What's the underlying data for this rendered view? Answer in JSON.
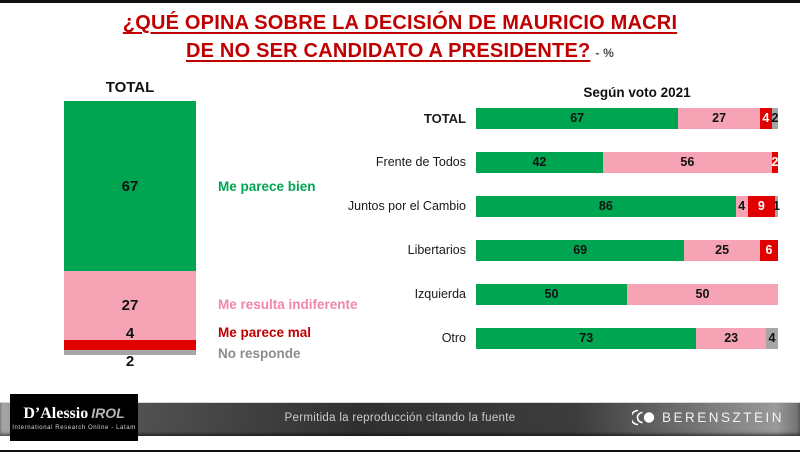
{
  "title": {
    "line1": "¿QUÉ OPINA SOBRE LA DECISIÓN DE MAURICIO MACRI",
    "line2": "DE NO SER CANDIDATO A PRESIDENTE?",
    "suffix": "- %"
  },
  "colors": {
    "green": "#00A551",
    "pink": "#F5A3B5",
    "red": "#E00000",
    "gray": "#A6A6A6",
    "title_red": "#C00000"
  },
  "chart_data": [
    {
      "type": "bar",
      "orientation": "vertical",
      "stacked": true,
      "title": "TOTAL",
      "categories": [
        "Me parece bien",
        "Me resulta indiferente",
        "Me parece mal",
        "No responde"
      ],
      "values": [
        67,
        27,
        4,
        2
      ],
      "color_keys": [
        "green",
        "pink",
        "red",
        "gray"
      ],
      "ylim": [
        0,
        100
      ]
    },
    {
      "type": "bar",
      "orientation": "horizontal",
      "stacked": true,
      "title": "Según voto 2021",
      "categories": [
        "TOTAL",
        "Frente de Todos",
        "Juntos por el Cambio",
        "Libertarios",
        "Izquierda",
        "Otro"
      ],
      "series": [
        {
          "name": "Me parece bien",
          "color_key": "green",
          "values": [
            67,
            42,
            86,
            69,
            50,
            73
          ]
        },
        {
          "name": "Me resulta indiferente",
          "color_key": "pink",
          "values": [
            27,
            56,
            4,
            25,
            50,
            23
          ]
        },
        {
          "name": "Me parece mal",
          "color_key": "red",
          "values": [
            4,
            2,
            9,
            6,
            0,
            0
          ]
        },
        {
          "name": "No responde",
          "color_key": "gray",
          "values": [
            2,
            0,
            1,
            0,
            0,
            4
          ]
        }
      ],
      "xlim": [
        0,
        100
      ],
      "legend_position": "none"
    }
  ],
  "footer": {
    "center_text": "Permitida la reproducción citando la fuente",
    "dalessio_name": "D’Alessio",
    "dalessio_irol": "IROL",
    "dalessio_subtitle": "International Research Online - Latam",
    "berensztein": "BERENSZTEIN"
  }
}
